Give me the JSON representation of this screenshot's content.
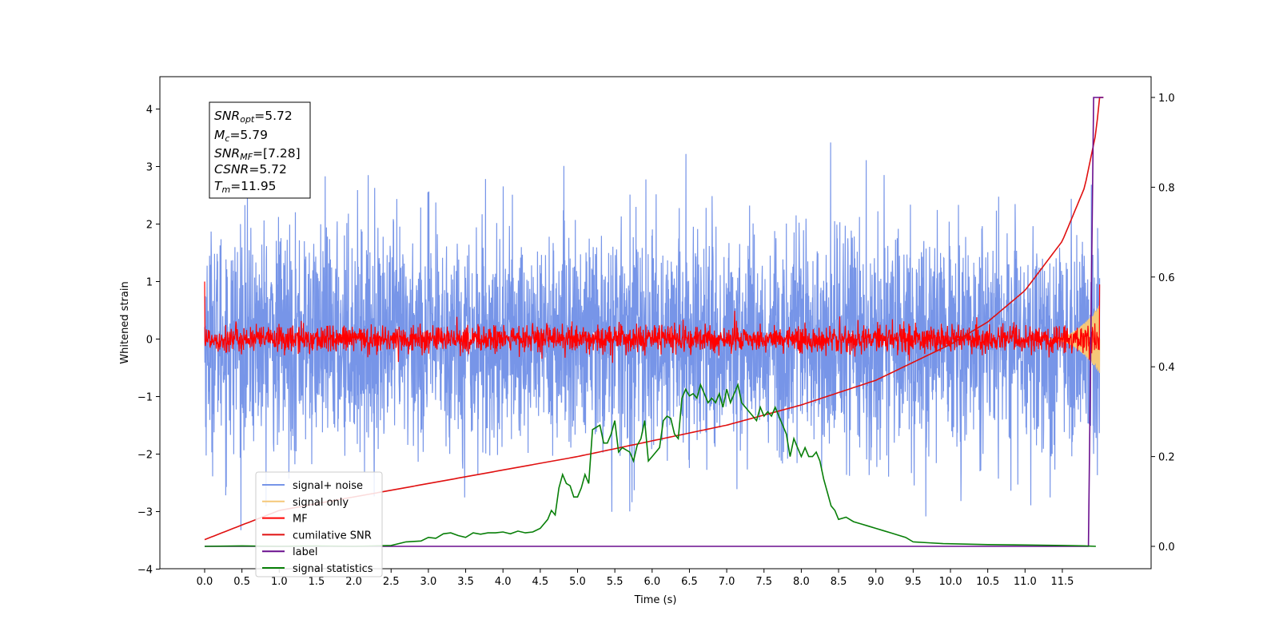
{
  "chart_data": {
    "type": "line",
    "xlabel": "Time (s)",
    "ylabel": "Whitened strain",
    "xlim": [
      -0.6,
      12.6
    ],
    "ylim": [
      -4.0,
      4.55
    ],
    "ylim_right": [
      -0.05,
      1.05
    ],
    "x_ticks": [
      "0.0",
      "0.5",
      "1.0",
      "1.5",
      "2.0",
      "2.5",
      "3.0",
      "3.5",
      "4.0",
      "4.5",
      "5.0",
      "5.5",
      "6.0",
      "6.5",
      "7.0",
      "7.5",
      "8.0",
      "8.5",
      "9.0",
      "9.5",
      "10.0",
      "10.5",
      "11.0",
      "11.5"
    ],
    "y_ticks_left": [
      "−4",
      "−3",
      "−2",
      "−1",
      "0",
      "1",
      "2",
      "3",
      "4"
    ],
    "y_ticks_right": [
      "0.0",
      "0.2",
      "0.4",
      "0.6",
      "0.8",
      "1.0"
    ],
    "legend_position": "lower-left",
    "annotation": {
      "line1": {
        "base": "SNR",
        "sub": "opt",
        "value": "=5.72"
      },
      "line2": {
        "base": "M",
        "sub": "c",
        "value": "=5.79"
      },
      "line3": {
        "base": "SNR",
        "sub": "MF",
        "value": "=[7.28]"
      },
      "line4": {
        "base": "CSNR",
        "sub": "",
        "value": "=5.72"
      },
      "line5": {
        "base": "T",
        "sub": "m",
        "value": "=11.95"
      }
    },
    "series": [
      {
        "name": "signal+ noise",
        "axis": "left",
        "color": "#7795e8",
        "kind": "noise",
        "amplitude_sd": 0.95,
        "x_range": [
          0.0,
          12.0
        ]
      },
      {
        "name": "signal only",
        "axis": "left",
        "color": "#f5c878",
        "kind": "chirp",
        "x_range": [
          11.3,
          12.0
        ],
        "peak_amplitude": 0.6
      },
      {
        "name": "MF",
        "axis": "left",
        "color": "#ff0000",
        "kind": "noise",
        "amplitude_sd": 0.12,
        "x_range": [
          0.0,
          12.0
        ],
        "start_value": 1.0,
        "end_value": 0.95
      },
      {
        "name": "cumilative SNR",
        "axis": "right",
        "color": "#e01010",
        "x": [
          0.0,
          1.0,
          2.0,
          3.0,
          4.0,
          5.0,
          6.0,
          7.0,
          8.0,
          9.0,
          10.0,
          10.5,
          11.0,
          11.5,
          11.8,
          11.95,
          12.0
        ],
        "y": [
          0.015,
          0.08,
          0.11,
          0.14,
          0.17,
          0.2,
          0.235,
          0.27,
          0.315,
          0.37,
          0.45,
          0.5,
          0.57,
          0.68,
          0.8,
          0.92,
          1.0
        ]
      },
      {
        "name": "label",
        "axis": "right",
        "color": "#6a0f8e",
        "x": [
          0.0,
          11.85,
          11.92,
          12.05
        ],
        "y": [
          0.0,
          0.0,
          1.0,
          1.0
        ]
      },
      {
        "name": "signal statistics",
        "axis": "right",
        "color": "#087f08",
        "x": [
          0.0,
          0.5,
          1.0,
          1.5,
          2.0,
          2.5,
          2.7,
          2.9,
          3.0,
          3.1,
          3.2,
          3.3,
          3.4,
          3.5,
          3.6,
          3.7,
          3.8,
          3.9,
          4.0,
          4.1,
          4.2,
          4.3,
          4.4,
          4.5,
          4.6,
          4.65,
          4.7,
          4.75,
          4.8,
          4.85,
          4.9,
          4.95,
          5.0,
          5.05,
          5.1,
          5.15,
          5.2,
          5.25,
          5.3,
          5.35,
          5.4,
          5.45,
          5.5,
          5.55,
          5.6,
          5.65,
          5.7,
          5.75,
          5.8,
          5.85,
          5.9,
          5.95,
          6.0,
          6.05,
          6.1,
          6.15,
          6.2,
          6.25,
          6.3,
          6.35,
          6.4,
          6.45,
          6.5,
          6.55,
          6.6,
          6.65,
          6.7,
          6.75,
          6.8,
          6.85,
          6.9,
          6.95,
          7.0,
          7.05,
          7.1,
          7.15,
          7.2,
          7.25,
          7.3,
          7.35,
          7.4,
          7.45,
          7.5,
          7.55,
          7.6,
          7.65,
          7.7,
          7.75,
          7.8,
          7.85,
          7.9,
          7.95,
          8.0,
          8.05,
          8.1,
          8.15,
          8.2,
          8.25,
          8.3,
          8.35,
          8.4,
          8.45,
          8.5,
          8.6,
          8.7,
          8.8,
          8.9,
          9.0,
          9.1,
          9.2,
          9.3,
          9.4,
          9.5,
          9.7,
          9.9,
          10.2,
          10.5,
          11.0,
          11.5,
          11.8,
          11.95
        ],
        "y": [
          0.0,
          0.001,
          0.0,
          0.001,
          0.0,
          0.002,
          0.01,
          0.012,
          0.02,
          0.018,
          0.028,
          0.03,
          0.024,
          0.02,
          0.03,
          0.027,
          0.03,
          0.03,
          0.032,
          0.028,
          0.034,
          0.03,
          0.032,
          0.04,
          0.06,
          0.08,
          0.07,
          0.13,
          0.16,
          0.14,
          0.135,
          0.11,
          0.11,
          0.13,
          0.16,
          0.14,
          0.26,
          0.265,
          0.27,
          0.23,
          0.23,
          0.25,
          0.28,
          0.21,
          0.22,
          0.215,
          0.21,
          0.19,
          0.225,
          0.24,
          0.28,
          0.19,
          0.2,
          0.21,
          0.22,
          0.28,
          0.29,
          0.285,
          0.25,
          0.24,
          0.33,
          0.35,
          0.335,
          0.34,
          0.33,
          0.36,
          0.34,
          0.32,
          0.33,
          0.32,
          0.34,
          0.31,
          0.35,
          0.32,
          0.34,
          0.36,
          0.32,
          0.31,
          0.3,
          0.29,
          0.28,
          0.31,
          0.29,
          0.3,
          0.29,
          0.31,
          0.29,
          0.27,
          0.25,
          0.2,
          0.24,
          0.22,
          0.2,
          0.22,
          0.2,
          0.2,
          0.21,
          0.19,
          0.15,
          0.12,
          0.09,
          0.08,
          0.06,
          0.065,
          0.055,
          0.05,
          0.045,
          0.04,
          0.035,
          0.03,
          0.025,
          0.02,
          0.01,
          0.008,
          0.006,
          0.005,
          0.004,
          0.003,
          0.002,
          0.001,
          0.0
        ]
      }
    ]
  }
}
